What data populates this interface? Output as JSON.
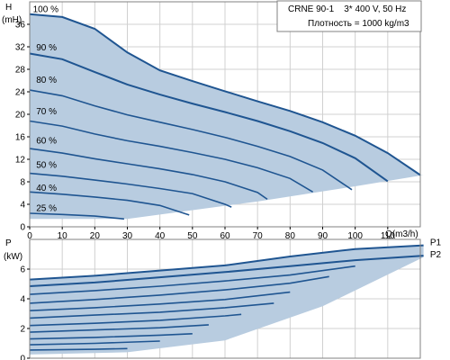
{
  "info_box": {
    "line1": "CRNE 90-1    3* 400 V, 50 Hz",
    "line2": "Плотность = 1000 kg/m3"
  },
  "colors": {
    "fill": "#b8cce0",
    "curve": "#1f5591",
    "grid": "#d0d0d0",
    "frame": "#808080"
  },
  "chart_data": [
    {
      "type": "line",
      "ylabel_top": "H",
      "ylabel_unit": "(mH)",
      "xlabel": "Q(m3/h)",
      "xlim": [
        0,
        120
      ],
      "ylim": [
        0,
        40
      ],
      "grid": true,
      "x_ticks": [
        0,
        10,
        20,
        30,
        40,
        50,
        60,
        70,
        80,
        90,
        100,
        110
      ],
      "y_ticks": [
        0,
        4,
        8,
        12,
        16,
        20,
        24,
        28,
        32,
        36
      ],
      "region_lower_edge": [
        [
          30,
          1.4
        ],
        [
          70,
          4.5
        ],
        [
          100,
          7.2
        ],
        [
          121,
          9.2
        ]
      ],
      "series": [
        {
          "name": "100 %",
          "label_pos": [
            1,
            38.2
          ],
          "points": [
            [
              0,
              37.8
            ],
            [
              10,
              37.3
            ],
            [
              20,
              35.2
            ],
            [
              30,
              31.0
            ],
            [
              40,
              27.8
            ],
            [
              50,
              25.9
            ],
            [
              60,
              24.1
            ],
            [
              70,
              22.3
            ],
            [
              80,
              20.6
            ],
            [
              90,
              18.6
            ],
            [
              100,
              16.2
            ],
            [
              110,
              13.1
            ],
            [
              120,
              9.2
            ]
          ]
        },
        {
          "name": "90 %",
          "label_pos": [
            2,
            31.4
          ],
          "points": [
            [
              0,
              30.8
            ],
            [
              10,
              29.8
            ],
            [
              20,
              27.5
            ],
            [
              30,
              25.3
            ],
            [
              40,
              23.5
            ],
            [
              50,
              21.9
            ],
            [
              60,
              20.4
            ],
            [
              70,
              18.8
            ],
            [
              80,
              17.0
            ],
            [
              90,
              14.9
            ],
            [
              100,
              12.2
            ],
            [
              110,
              8.1
            ]
          ]
        },
        {
          "name": "80 %",
          "label_pos": [
            2,
            25.6
          ],
          "points": [
            [
              0,
              24.3
            ],
            [
              10,
              23.3
            ],
            [
              20,
              21.5
            ],
            [
              30,
              19.9
            ],
            [
              40,
              18.6
            ],
            [
              50,
              17.3
            ],
            [
              60,
              15.9
            ],
            [
              70,
              14.3
            ],
            [
              80,
              12.5
            ],
            [
              90,
              10.1
            ],
            [
              99,
              6.6
            ]
          ]
        },
        {
          "name": "70 %",
          "label_pos": [
            2,
            20.0
          ],
          "points": [
            [
              0,
              18.8
            ],
            [
              10,
              17.9
            ],
            [
              20,
              16.5
            ],
            [
              30,
              15.3
            ],
            [
              40,
              14.3
            ],
            [
              50,
              13.2
            ],
            [
              60,
              12.0
            ],
            [
              70,
              10.5
            ],
            [
              80,
              8.6
            ],
            [
              87,
              6.2
            ]
          ]
        },
        {
          "name": "60 %",
          "label_pos": [
            2,
            14.8
          ],
          "points": [
            [
              0,
              13.9
            ],
            [
              10,
              13.1
            ],
            [
              20,
              12.1
            ],
            [
              30,
              11.2
            ],
            [
              40,
              10.3
            ],
            [
              50,
              9.3
            ],
            [
              60,
              8.0
            ],
            [
              70,
              6.1
            ],
            [
              73,
              4.9
            ]
          ]
        },
        {
          "name": "50 %",
          "label_pos": [
            2,
            10.5
          ],
          "points": [
            [
              0,
              9.5
            ],
            [
              10,
              9.0
            ],
            [
              20,
              8.3
            ],
            [
              30,
              7.6
            ],
            [
              40,
              6.8
            ],
            [
              50,
              5.9
            ],
            [
              60,
              4.0
            ],
            [
              62,
              3.5
            ]
          ]
        },
        {
          "name": "40 %",
          "label_pos": [
            2,
            6.4
          ],
          "points": [
            [
              0,
              6.2
            ],
            [
              10,
              5.8
            ],
            [
              20,
              5.3
            ],
            [
              30,
              4.7
            ],
            [
              40,
              3.8
            ],
            [
              49,
              2.1
            ]
          ]
        },
        {
          "name": "25 %",
          "label_pos": [
            2,
            2.8
          ],
          "points": [
            [
              0,
              2.4
            ],
            [
              10,
              2.2
            ],
            [
              20,
              1.9
            ],
            [
              29,
              1.4
            ]
          ]
        }
      ]
    },
    {
      "type": "line",
      "ylabel_top": "P",
      "ylabel_unit": "(kW)",
      "xlim": [
        0,
        120
      ],
      "ylim": [
        0,
        8
      ],
      "grid": true,
      "y_ticks": [
        0,
        2,
        4,
        6
      ],
      "region_lower_edge": [
        [
          0,
          0.25
        ],
        [
          30,
          0.4
        ],
        [
          60,
          1.2
        ],
        [
          90,
          3.5
        ],
        [
          121,
          6.8
        ]
      ],
      "series": [
        {
          "name": "P1",
          "label_pos": [
            123,
            7.6
          ],
          "points": [
            [
              0,
              5.3
            ],
            [
              20,
              5.55
            ],
            [
              40,
              5.9
            ],
            [
              60,
              6.25
            ],
            [
              80,
              6.85
            ],
            [
              100,
              7.35
            ],
            [
              121,
              7.6
            ]
          ]
        },
        {
          "name": "P2",
          "label_pos": [
            123,
            6.8
          ],
          "points": [
            [
              0,
              4.85
            ],
            [
              20,
              5.1
            ],
            [
              40,
              5.45
            ],
            [
              60,
              5.8
            ],
            [
              80,
              6.2
            ],
            [
              100,
              6.6
            ],
            [
              121,
              6.9
            ]
          ]
        },
        {
          "name": "",
          "points": [
            [
              0,
              4.3
            ],
            [
              20,
              4.55
            ],
            [
              40,
              4.85
            ],
            [
              60,
              5.2
            ],
            [
              80,
              5.6
            ],
            [
              100,
              6.2
            ]
          ]
        },
        {
          "name": "",
          "points": [
            [
              0,
              3.7
            ],
            [
              20,
              3.95
            ],
            [
              40,
              4.25
            ],
            [
              60,
              4.6
            ],
            [
              80,
              5.05
            ],
            [
              92,
              5.5
            ]
          ]
        },
        {
          "name": "",
          "points": [
            [
              0,
              3.2
            ],
            [
              20,
              3.4
            ],
            [
              40,
              3.65
            ],
            [
              60,
              3.95
            ],
            [
              80,
              4.45
            ]
          ]
        },
        {
          "name": "",
          "points": [
            [
              0,
              2.7
            ],
            [
              20,
              2.9
            ],
            [
              40,
              3.1
            ],
            [
              60,
              3.4
            ],
            [
              75,
              3.7
            ]
          ]
        },
        {
          "name": "",
          "points": [
            [
              0,
              2.2
            ],
            [
              20,
              2.35
            ],
            [
              40,
              2.55
            ],
            [
              60,
              2.85
            ],
            [
              65,
              2.95
            ]
          ]
        },
        {
          "name": "",
          "points": [
            [
              0,
              1.75
            ],
            [
              20,
              1.9
            ],
            [
              40,
              2.05
            ],
            [
              55,
              2.25
            ]
          ]
        },
        {
          "name": "",
          "points": [
            [
              0,
              1.3
            ],
            [
              20,
              1.4
            ],
            [
              40,
              1.55
            ],
            [
              50,
              1.65
            ]
          ]
        },
        {
          "name": "",
          "points": [
            [
              0,
              0.9
            ],
            [
              20,
              1.0
            ],
            [
              40,
              1.15
            ]
          ]
        },
        {
          "name": "",
          "points": [
            [
              0,
              0.55
            ],
            [
              20,
              0.6
            ],
            [
              30,
              0.65
            ]
          ]
        }
      ]
    }
  ]
}
